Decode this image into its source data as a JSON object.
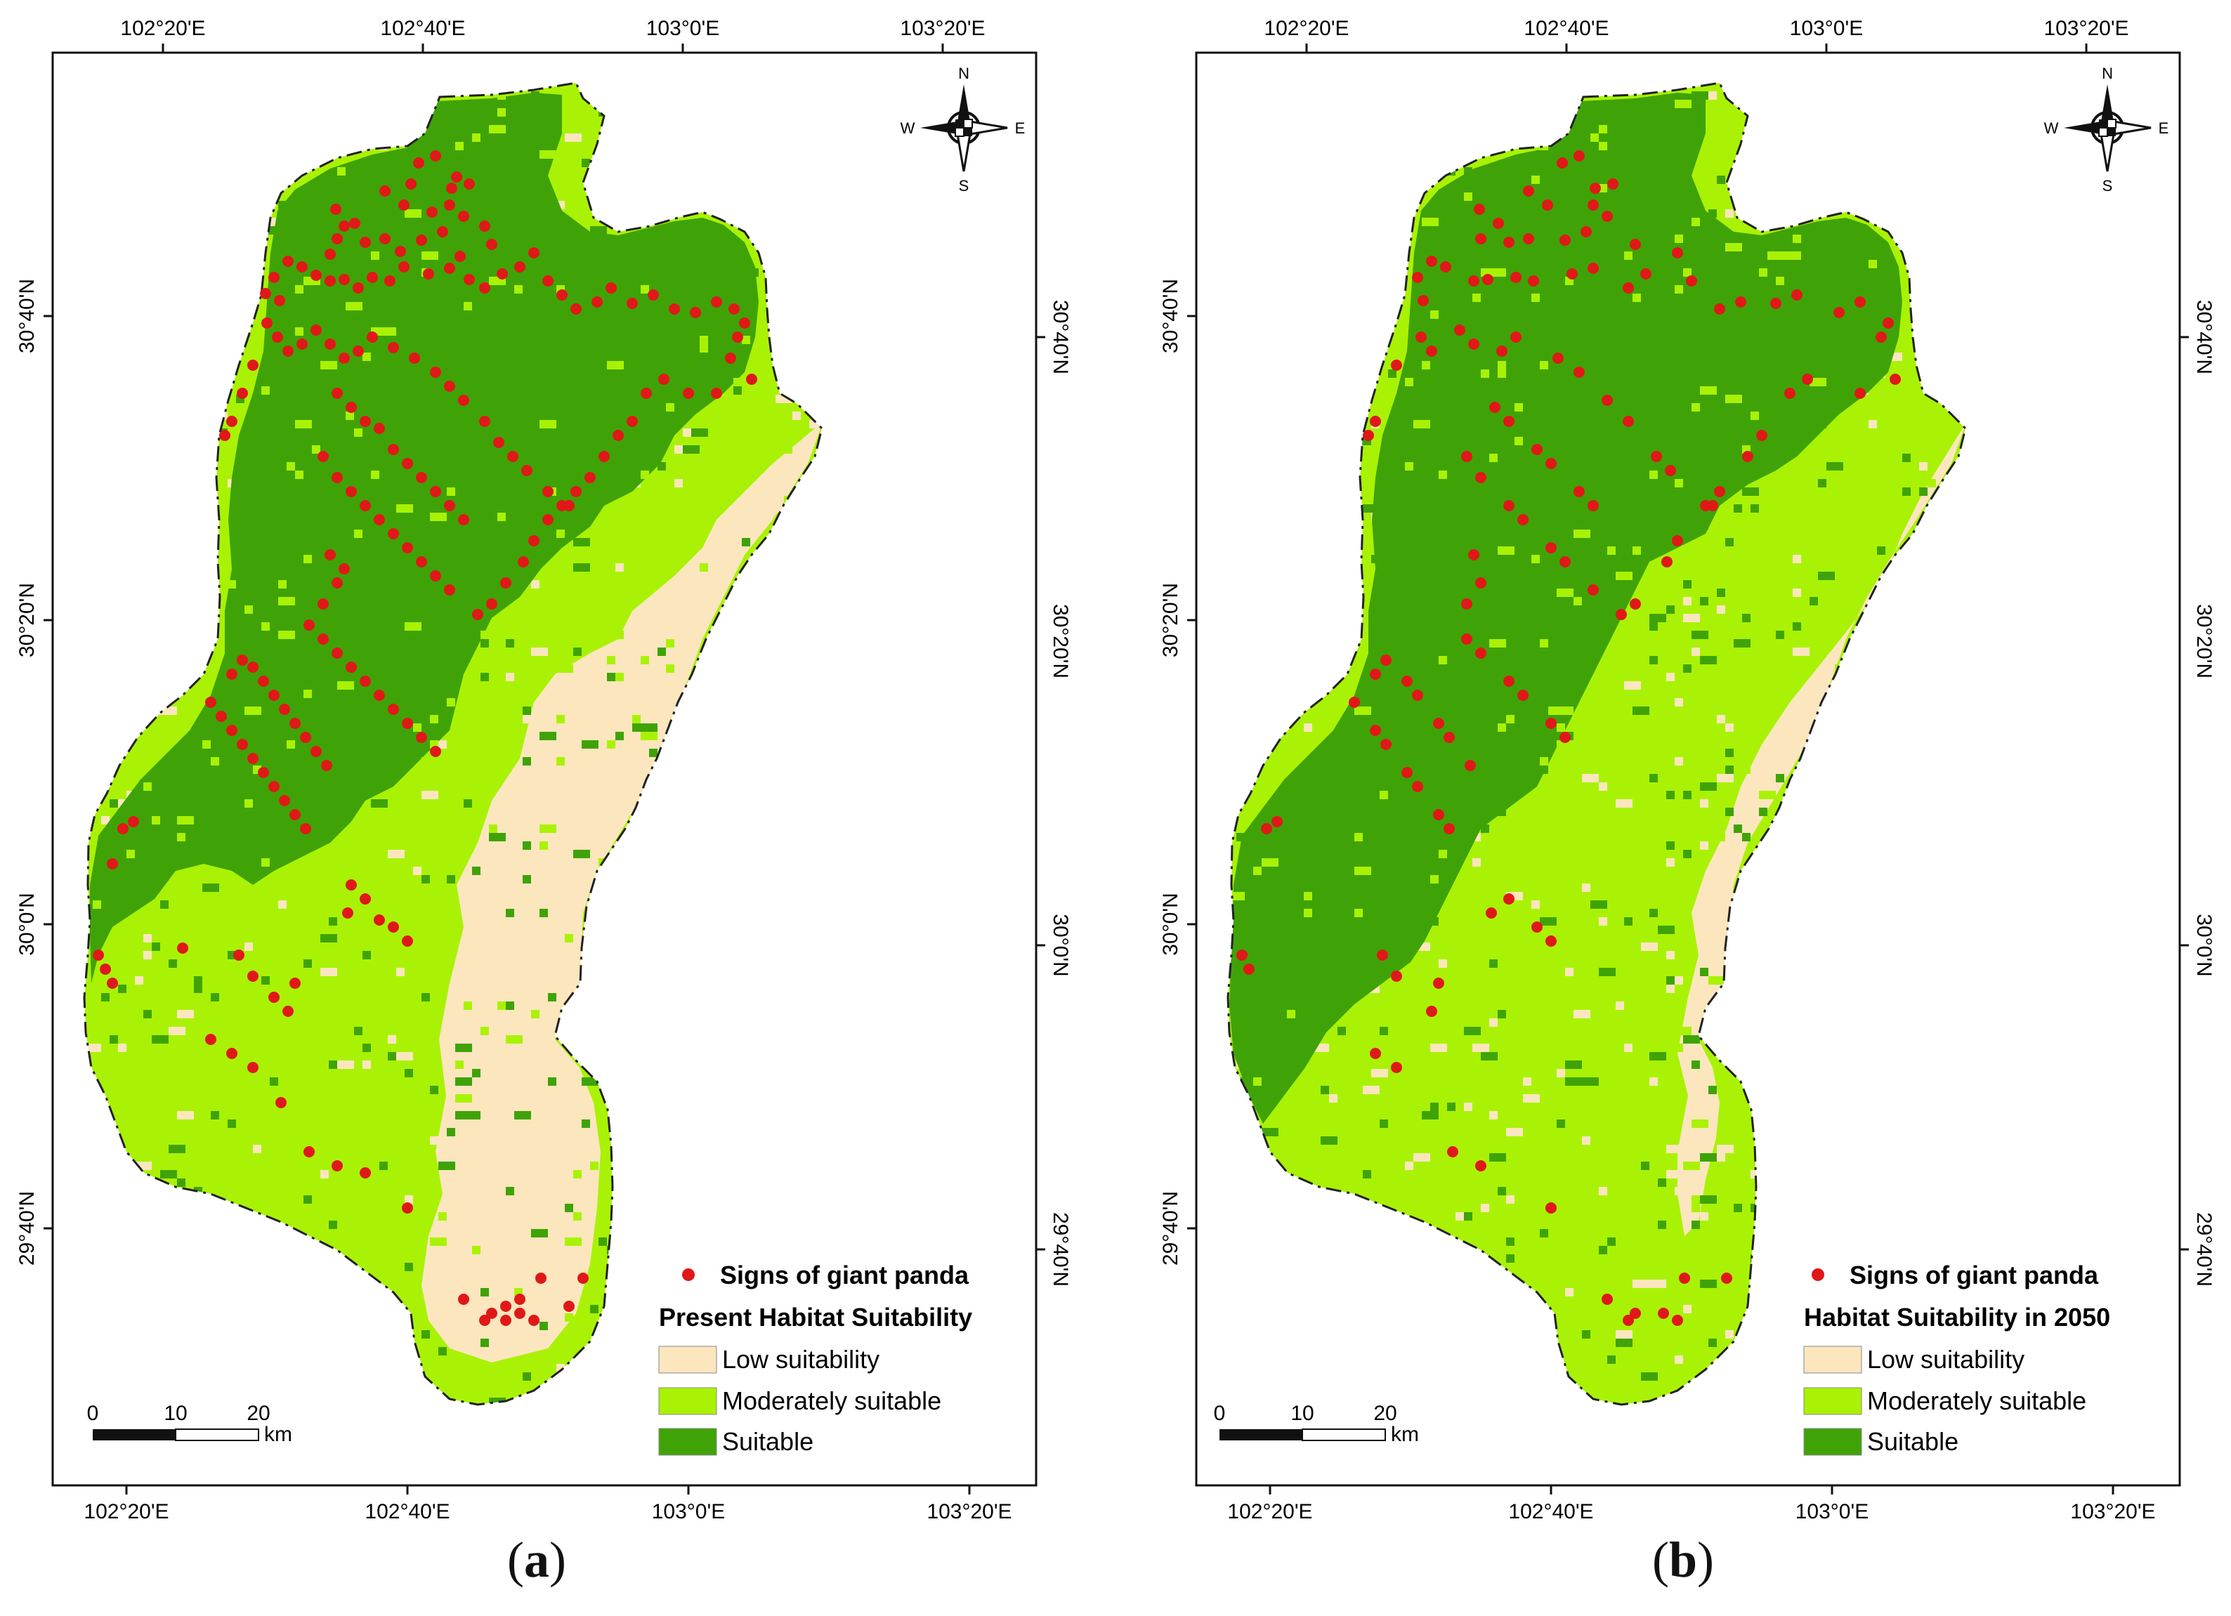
{
  "colors": {
    "low": "#fbe6bd",
    "moderate": "#a9f205",
    "suitable": "#3fa308",
    "signs": "#e01818",
    "frame": "#111111"
  },
  "axes": {
    "lon_labels": [
      "102°20'E",
      "102°40'E",
      "103°0'E",
      "103°20'E"
    ],
    "lat_labels": [
      "30°40'N",
      "30°20'N",
      "30°0'N",
      "29°40'N"
    ]
  },
  "compass": {
    "n": "N",
    "s": "S",
    "e": "E",
    "w": "W"
  },
  "scalebar": {
    "ticks": [
      "0",
      "10",
      "20"
    ],
    "unit": "km"
  },
  "panels": [
    {
      "label": "a",
      "legend": {
        "signs": "Signs of giant panda",
        "title": "Present Habitat Suitability",
        "items": [
          "Low suitability",
          "Moderately suitable",
          "Suitable"
        ]
      }
    },
    {
      "label": "b",
      "legend": {
        "signs": "Signs of giant panda",
        "title": "Habitat Suitability in 2050",
        "items": [
          "Low suitability",
          "Moderately suitable",
          "Suitable"
        ]
      }
    }
  ]
}
